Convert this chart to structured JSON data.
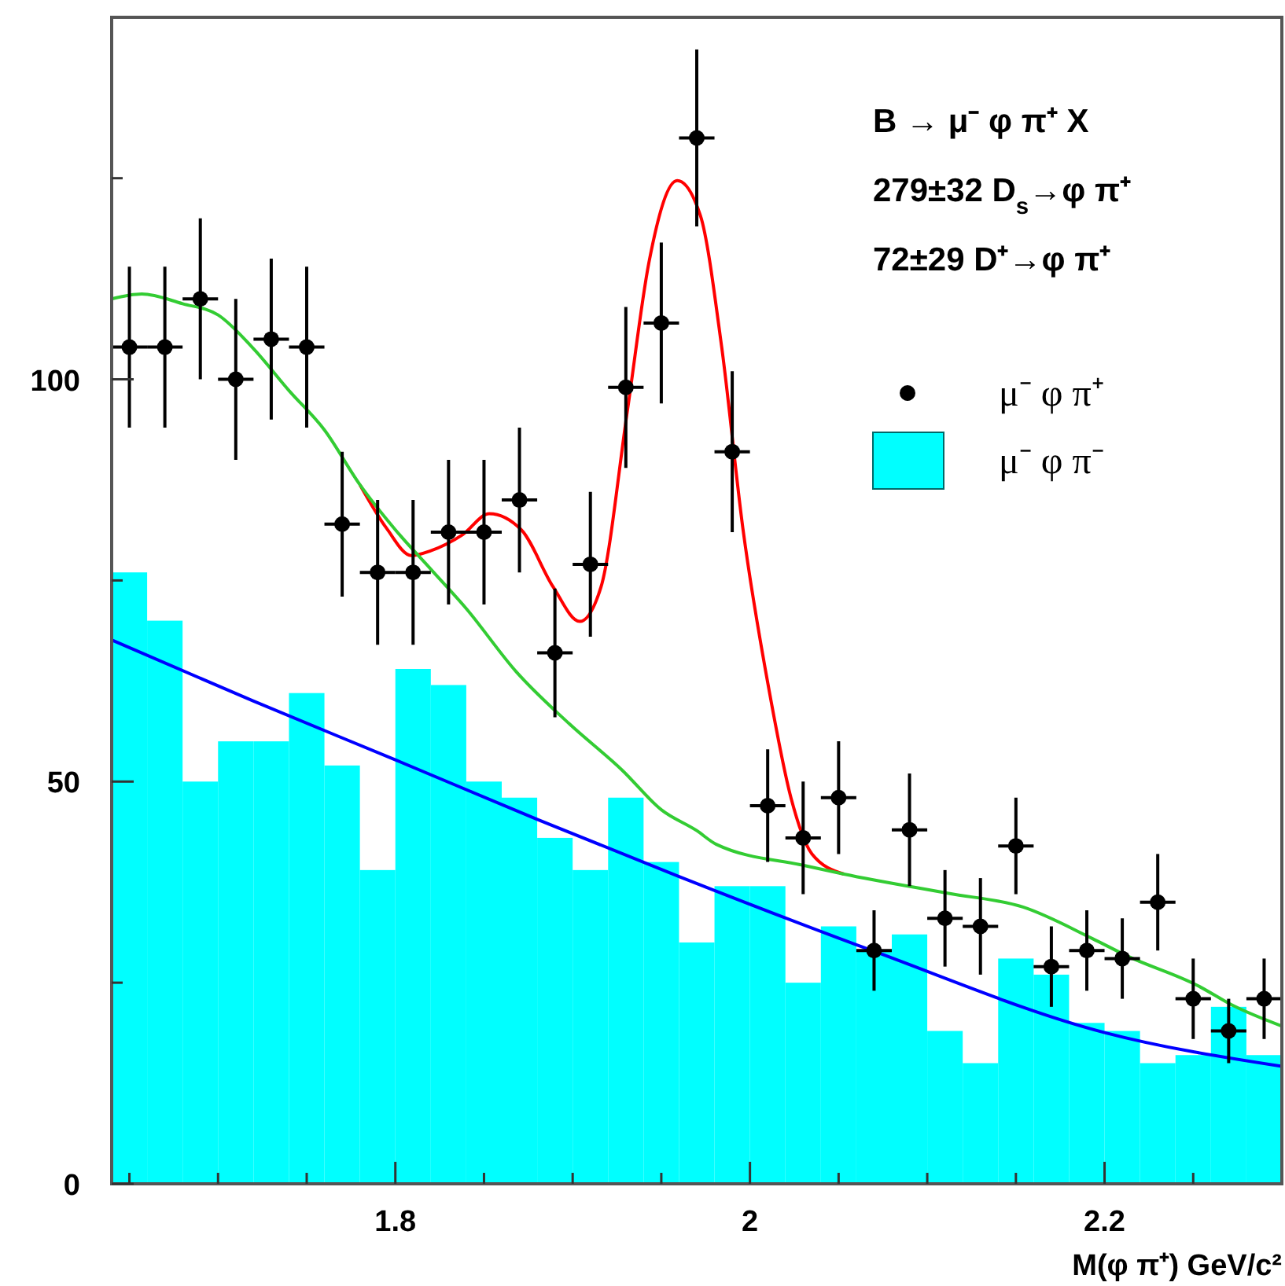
{
  "chart_data": {
    "type": "histogram",
    "xlabel": "M(φ π⁺) GeV/c²",
    "annotations": [
      "B → μ⁻ φ π⁺ X",
      "279±32  D$_{s}$→φ π⁺",
      "72±29  D⁺→φ π⁺"
    ],
    "xlim": [
      1.64,
      2.3
    ],
    "ylim": [
      0,
      145
    ],
    "xticks": [
      {
        "value": 1.65,
        "label": null
      },
      {
        "value": 1.7,
        "label": null
      },
      {
        "value": 1.75,
        "label": null
      },
      1.8,
      {
        "value": 1.85,
        "label": null
      },
      {
        "value": 1.9,
        "label": null
      },
      {
        "value": 1.95,
        "label": null
      },
      2,
      {
        "value": 2.05,
        "label": null
      },
      {
        "value": 2.1,
        "label": null
      },
      {
        "value": 2.15,
        "label": null
      },
      2.2,
      {
        "value": 2.25,
        "label": null
      }
    ],
    "yticks": [
      0,
      {
        "value": 25,
        "label": null
      },
      50,
      {
        "value": 75,
        "label": null
      },
      100,
      {
        "value": 125,
        "label": null
      }
    ],
    "grid": false,
    "legend": "top right",
    "bins": [
      1.64,
      1.66,
      1.68,
      1.7,
      1.72,
      1.74,
      1.76,
      1.78,
      1.8,
      1.82,
      1.84,
      1.86,
      1.88,
      1.9,
      1.92,
      1.94,
      1.96,
      1.98,
      2.0,
      2.02,
      2.04,
      2.06,
      2.08,
      2.1,
      2.12,
      2.14,
      2.16,
      2.18,
      2.2,
      2.22,
      2.24,
      2.26,
      2.28,
      2.3
    ],
    "series": [
      {
        "name": "μ⁻ φ π⁻",
        "color": "#00ffff",
        "values": [
          76,
          70,
          50,
          55,
          55,
          61,
          52,
          39,
          64,
          62,
          50,
          48,
          43,
          39,
          48,
          40,
          30,
          37,
          37,
          25,
          32,
          29,
          31,
          19,
          15,
          28,
          26,
          20,
          19,
          15,
          16,
          22,
          16
        ]
      },
      {
        "type": "scatter",
        "name": "μ⁻ φ π⁺",
        "color": "#000000",
        "marker": "circle",
        "x": [
          1.65,
          1.67,
          1.69,
          1.71,
          1.73,
          1.75,
          1.77,
          1.79,
          1.81,
          1.83,
          1.85,
          1.87,
          1.89,
          1.91,
          1.93,
          1.95,
          1.97,
          1.99,
          2.01,
          2.03,
          2.05,
          2.07,
          2.09,
          2.11,
          2.13,
          2.15,
          2.17,
          2.19,
          2.21,
          2.23,
          2.25,
          2.27,
          2.29
        ],
        "values": [
          104,
          104,
          110,
          100,
          105,
          104,
          82,
          76,
          76,
          81,
          81,
          85,
          66,
          77,
          99,
          107,
          130,
          91,
          47,
          43,
          48,
          29,
          44,
          33,
          32,
          42,
          27,
          29,
          28,
          35,
          23,
          19,
          23
        ],
        "errors": [
          10,
          10,
          10,
          10,
          10,
          10,
          9,
          9,
          9,
          9,
          9,
          9,
          8,
          9,
          10,
          10,
          11,
          10,
          7,
          7,
          7,
          5,
          7,
          6,
          6,
          6,
          5,
          5,
          5,
          6,
          5,
          4,
          5
        ],
        "xerrors": [
          0.01,
          0.01,
          0.01,
          0.01,
          0.01,
          0.01,
          0.01,
          0.01,
          0.01,
          0.01,
          0.01,
          0.01,
          0.01,
          0.01,
          0.01,
          0.01,
          0.01,
          0.01,
          0.01,
          0.01,
          0.01,
          0.01,
          0.01,
          0.01,
          0.01,
          0.01,
          0.01,
          0.01,
          0.01,
          0.01,
          0.01,
          0.01,
          0.01
        ]
      },
      {
        "type": "line",
        "color": "#ff0000",
        "x": [
          1.78,
          1.795,
          1.809,
          1.82,
          1.838,
          1.853,
          1.871,
          1.889,
          1.904,
          1.916,
          1.931,
          1.943,
          1.959,
          1.972,
          1.984,
          1.996,
          2.011,
          2.023,
          2.035,
          2.053
        ],
        "values": [
          86.9,
          81.5,
          78.1,
          78.7,
          80.7,
          83.3,
          81.3,
          74.2,
          69.9,
          74.2,
          96.3,
          114.5,
          124.7,
          120.4,
          104.1,
          81.5,
          61.1,
          48.1,
          41,
          38.5
        ]
      },
      {
        "type": "line",
        "color": "#33cc33",
        "x": [
          1.64,
          1.657,
          1.68,
          1.7,
          1.72,
          1.74,
          1.76,
          1.78,
          1.8,
          1.82,
          1.84,
          1.868,
          1.898,
          1.928,
          1.95,
          1.97,
          1.981,
          2.032,
          2.053,
          2.112,
          2.154,
          2.193,
          2.213,
          2.252,
          2.273,
          2.3
        ],
        "values": [
          110,
          110.6,
          109.4,
          108,
          103.8,
          98.6,
          93.7,
          86.9,
          81.3,
          76.4,
          71.5,
          63.7,
          57.2,
          51.4,
          46.5,
          43.9,
          42.2,
          39.5,
          38.5,
          36.1,
          34.4,
          30.5,
          28.3,
          24.7,
          22.1,
          19.6
        ]
      },
      {
        "type": "line",
        "color": "#0000ff",
        "x": [
          1.64,
          1.72,
          1.8,
          1.88,
          1.96,
          2.07,
          2.2,
          2.3
        ],
        "values": [
          67.6,
          60,
          52.7,
          45.3,
          38.2,
          28.9,
          18.8,
          14.6
        ]
      }
    ]
  }
}
